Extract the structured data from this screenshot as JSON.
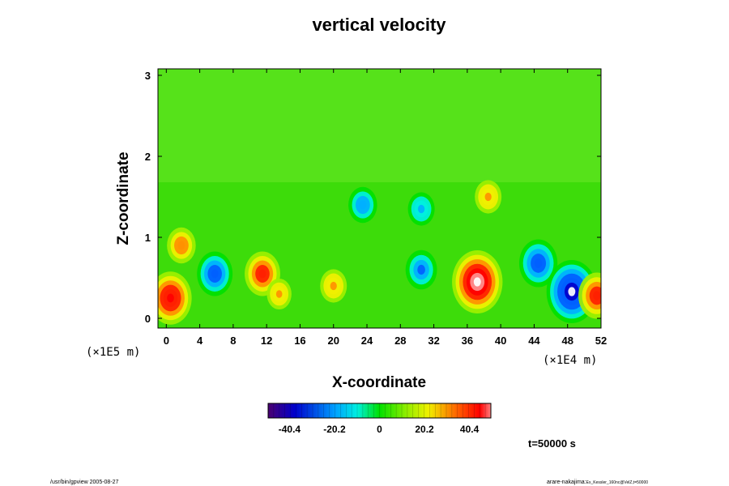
{
  "chart_data": {
    "type": "heatmap",
    "title": "vertical velocity",
    "xlabel": "X-coordinate",
    "ylabel": "Z-coordinate",
    "x_scale_note": "(×1E4 m)",
    "y_scale_note": "(×1E5 m)",
    "xlim": [
      -1,
      52
    ],
    "ylim": [
      -0.12,
      3.08
    ],
    "x_ticks": [
      "0",
      "4",
      "8",
      "12",
      "16",
      "20",
      "24",
      "28",
      "32",
      "36",
      "40",
      "44",
      "48",
      "52"
    ],
    "x_tick_values": [
      0,
      4,
      8,
      12,
      16,
      20,
      24,
      28,
      32,
      36,
      40,
      44,
      48,
      52
    ],
    "y_ticks": [
      "0",
      "1",
      "2",
      "3"
    ],
    "y_tick_values": [
      0,
      1,
      2,
      3
    ],
    "colorbar": {
      "min": -50,
      "max": 50,
      "ticks": [
        "-40.4",
        "-20.2",
        "0",
        "20.2",
        "40.4"
      ],
      "tick_values": [
        -40.4,
        -20.2,
        0,
        20.2,
        40.4
      ]
    },
    "features": [
      {
        "x": 0.5,
        "z": 0.25,
        "value": 48
      },
      {
        "x": 1.8,
        "z": 0.9,
        "value": 28
      },
      {
        "x": 5.8,
        "z": 0.55,
        "value": -38
      },
      {
        "x": 11.5,
        "z": 0.55,
        "value": 38
      },
      {
        "x": 13.5,
        "z": 0.3,
        "value": 22
      },
      {
        "x": 20.0,
        "z": 0.4,
        "value": 25
      },
      {
        "x": 30.5,
        "z": 0.6,
        "value": -32
      },
      {
        "x": 37.2,
        "z": 0.45,
        "value": 60
      },
      {
        "x": 44.5,
        "z": 0.68,
        "value": -42
      },
      {
        "x": 48.5,
        "z": 0.33,
        "value": -60
      },
      {
        "x": 51.5,
        "z": 0.28,
        "value": 40
      },
      {
        "x": 23.5,
        "z": 1.4,
        "value": -28
      },
      {
        "x": 30.5,
        "z": 1.35,
        "value": -25
      },
      {
        "x": 38.5,
        "z": 1.5,
        "value": 25
      }
    ]
  },
  "time_label": "t=50000 s",
  "footer": {
    "left": "/usr/bin/gpview 2005-08-27",
    "right": "arare-nakajima:",
    "right_small": "Ex_Kessler_160nc@VelZ,t=50000"
  }
}
